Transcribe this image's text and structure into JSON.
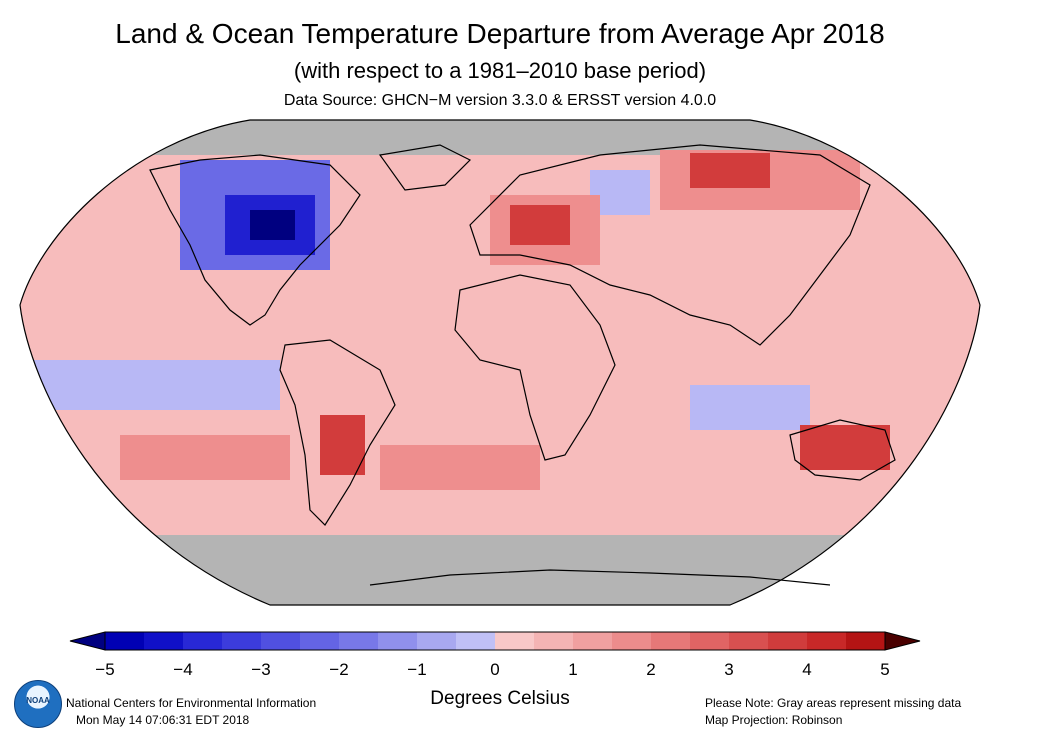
{
  "title": "Land & Ocean Temperature Departure from Average Apr 2018",
  "subtitle": "(with respect to a 1981–2010 base period)",
  "source": "Data Source: GHCN−M version 3.3.0 & ERSST version 4.0.0",
  "colorbar": {
    "ticks": [
      "−5",
      "−4",
      "−3",
      "−2",
      "−1",
      "0",
      "1",
      "2",
      "3",
      "4",
      "5"
    ],
    "unit_label": "Degrees Celsius",
    "colors": {
      "cold_extreme": "#000080",
      "cold_strong": "#2020d0",
      "cold_mid": "#6a6ae6",
      "cold_light": "#b8b8f5",
      "warm_light": "#f7bcbc",
      "warm_mid": "#ee8e8e",
      "warm_strong": "#d23c3c",
      "warm_extreme": "#4a0000",
      "missing": "#b4b4b4"
    }
  },
  "footer": {
    "org": "National Centers for Environmental Information",
    "timestamp": "Mon May 14 07:06:31 EDT 2018",
    "note": "Please Note: Gray areas represent missing data",
    "projection": "Map Projection: Robinson",
    "logo_text": "NOAA"
  }
}
